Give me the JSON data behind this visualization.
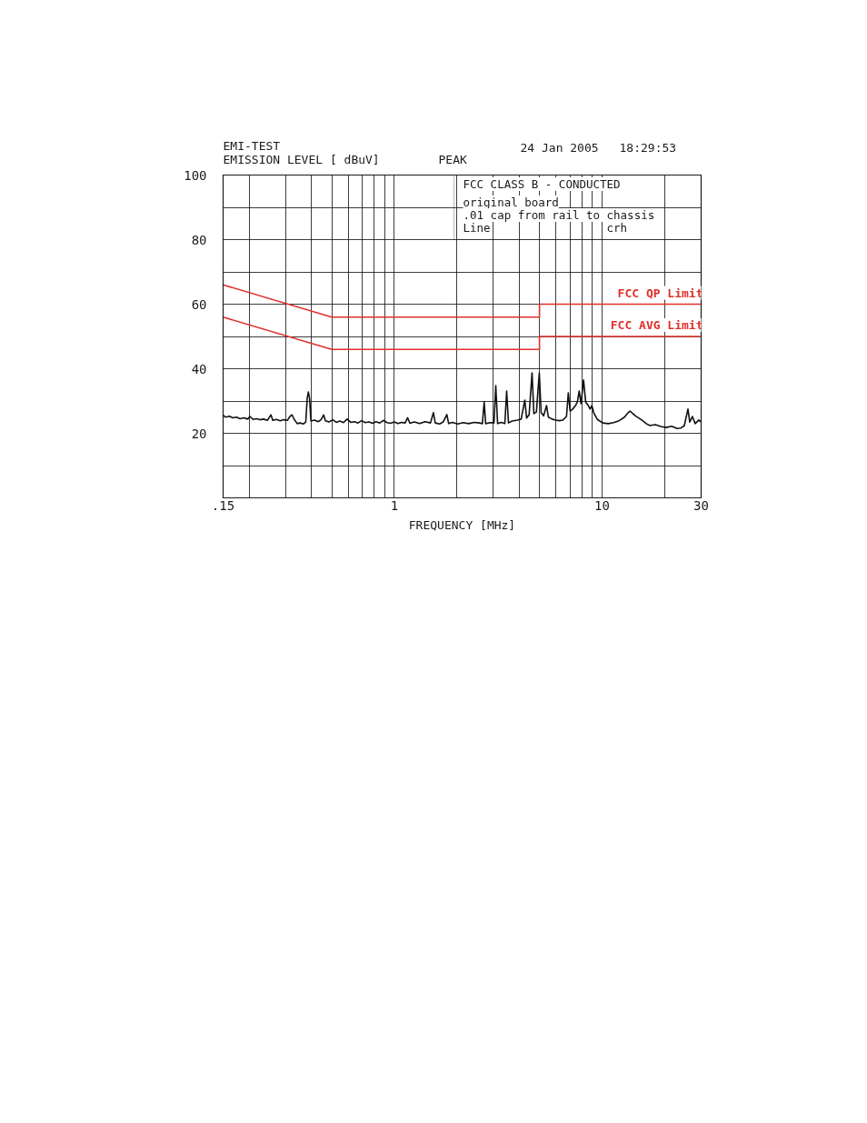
{
  "chart_data": {
    "type": "line",
    "title": "EMI-TEST",
    "ylabel": "EMISSION LEVEL [ dBuV]",
    "xlabel": "FREQUENCY [MHz]",
    "annotations": [
      "PEAK",
      "24 Jan 2005",
      "18:29:53",
      "FCC CLASS B - CONDUCTED",
      "original board",
      ".01 cap from rail to chassis",
      "Line",
      "crh"
    ],
    "log": "x",
    "grid": true,
    "xlim": [
      0.15,
      30
    ],
    "ylim": [
      0,
      100
    ],
    "xticks": [
      {
        "value": 0.15,
        "label": ".15"
      },
      {
        "value": 0.2,
        "label": null
      },
      {
        "value": 0.3,
        "label": null
      },
      {
        "value": 0.4,
        "label": null
      },
      {
        "value": 0.5,
        "label": null
      },
      {
        "value": 0.6,
        "label": null
      },
      {
        "value": 0.7,
        "label": null
      },
      {
        "value": 0.8,
        "label": null
      },
      {
        "value": 0.9,
        "label": null
      },
      1,
      {
        "value": 2,
        "label": null
      },
      {
        "value": 3,
        "label": null
      },
      {
        "value": 4,
        "label": null
      },
      {
        "value": 5,
        "label": null
      },
      {
        "value": 6,
        "label": null
      },
      {
        "value": 7,
        "label": null
      },
      {
        "value": 8,
        "label": null
      },
      {
        "value": 9,
        "label": null
      },
      10,
      {
        "value": 20,
        "label": null
      },
      30
    ],
    "yticks": [
      {
        "value": 0,
        "label": null
      },
      {
        "value": 10,
        "label": null
      },
      20,
      {
        "value": 30,
        "label": null
      },
      40,
      {
        "value": 50,
        "label": null
      },
      60,
      {
        "value": 70,
        "label": null
      },
      80,
      {
        "value": 90,
        "label": null
      },
      100
    ],
    "series": [
      {
        "color": "#111111",
        "x": [
          0.15,
          0.154,
          0.161,
          0.167,
          0.174,
          0.181,
          0.189,
          0.197,
          0.202,
          0.209,
          0.217,
          0.226,
          0.235,
          0.245,
          0.255,
          0.26,
          0.271,
          0.282,
          0.294,
          0.306,
          0.314,
          0.322,
          0.33,
          0.341,
          0.352,
          0.366,
          0.375,
          0.381,
          0.386,
          0.391,
          0.397,
          0.413,
          0.43,
          0.444,
          0.457,
          0.466,
          0.485,
          0.505,
          0.526,
          0.547,
          0.57,
          0.593,
          0.617,
          0.643,
          0.669,
          0.696,
          0.725,
          0.755,
          0.786,
          0.818,
          0.851,
          0.886,
          0.923,
          0.961,
          1.0,
          1.041,
          1.084,
          1.128,
          1.16,
          1.189,
          1.247,
          1.325,
          1.407,
          1.494,
          1.543,
          1.575,
          1.653,
          1.72,
          1.791,
          1.827,
          1.902,
          2.02,
          2.146,
          2.279,
          2.421,
          2.571,
          2.655,
          2.709,
          2.753,
          2.9,
          3.019,
          3.08,
          3.143,
          3.272,
          3.406,
          3.475,
          3.546,
          3.692,
          3.922,
          4.082,
          4.25,
          4.335,
          4.459,
          4.605,
          4.698,
          4.832,
          4.99,
          5.091,
          5.236,
          5.408,
          5.517,
          5.744,
          5.979,
          6.224,
          6.479,
          6.745,
          6.881,
          7.021,
          7.221,
          7.457,
          7.608,
          7.763,
          7.921,
          8.147,
          8.346,
          8.585,
          8.759,
          8.936,
          9.119,
          9.491,
          10.08,
          10.71,
          11.37,
          12.08,
          12.83,
          13.36,
          13.63,
          14.07,
          14.48,
          15.07,
          15.69,
          16.33,
          17.0,
          18.05,
          19.17,
          20.37,
          21.63,
          22.98,
          23.92,
          24.9,
          25.92,
          26.44,
          27.21,
          28.09,
          29.24,
          30.0
        ],
        "values": [
          25.6,
          25.0,
          25.3,
          24.8,
          25.0,
          24.5,
          24.8,
          24.4,
          25.2,
          24.3,
          24.5,
          24.2,
          24.4,
          24.0,
          25.7,
          24.0,
          24.3,
          23.9,
          24.2,
          24.0,
          25.2,
          25.7,
          24.3,
          23.0,
          23.2,
          22.9,
          23.5,
          30.9,
          32.8,
          30.9,
          23.8,
          24.1,
          23.6,
          24.2,
          25.7,
          23.9,
          23.5,
          24.2,
          23.4,
          23.8,
          23.3,
          24.4,
          23.4,
          23.6,
          23.2,
          23.9,
          23.3,
          23.5,
          23.1,
          23.6,
          23.2,
          24.0,
          23.3,
          23.1,
          23.5,
          23.0,
          23.4,
          23.2,
          24.8,
          23.1,
          23.5,
          23.0,
          23.6,
          23.2,
          26.4,
          23.2,
          22.9,
          23.5,
          25.8,
          23.0,
          23.4,
          22.9,
          23.3,
          23.0,
          23.4,
          23.2,
          23.0,
          29.7,
          23.0,
          23.3,
          23.2,
          34.8,
          23.0,
          23.4,
          23.0,
          33.1,
          23.2,
          23.8,
          24.1,
          24.4,
          30.3,
          24.7,
          25.8,
          38.7,
          26.1,
          26.6,
          38.7,
          26.4,
          25.4,
          28.6,
          25.0,
          24.4,
          24.1,
          23.9,
          24.1,
          25.2,
          32.5,
          26.9,
          27.5,
          28.6,
          29.7,
          33.1,
          29.2,
          36.5,
          29.7,
          28.6,
          27.5,
          28.6,
          26.4,
          24.3,
          23.2,
          23.0,
          23.3,
          23.9,
          25.0,
          26.4,
          26.9,
          26.1,
          25.4,
          24.7,
          23.9,
          23.0,
          22.4,
          22.7,
          22.1,
          21.8,
          22.2,
          21.5,
          21.6,
          22.4,
          27.5,
          23.5,
          25.2,
          23.0,
          24.1,
          23.5
        ]
      },
      {
        "name": "FCC QP Limit",
        "color": "#e0302a",
        "x": [
          0.15,
          0.5,
          5,
          5,
          30
        ],
        "values": [
          66,
          56,
          56,
          60,
          60
        ]
      },
      {
        "name": "FCC AVG Limit",
        "color": "#e0302a",
        "x": [
          0.15,
          0.5,
          5,
          5,
          30
        ],
        "values": [
          56,
          46,
          46,
          50,
          50
        ]
      }
    ]
  }
}
